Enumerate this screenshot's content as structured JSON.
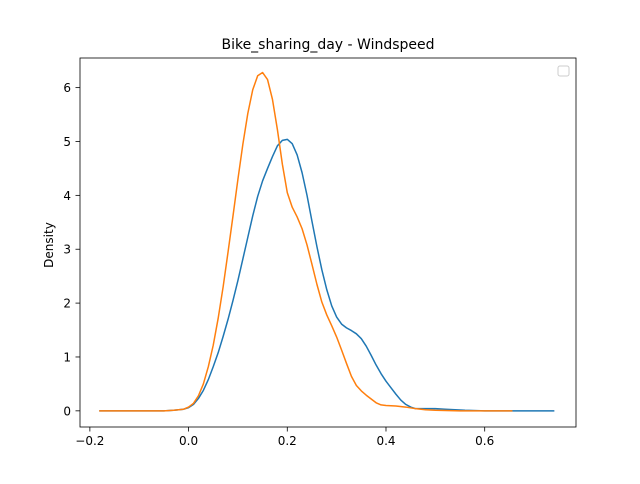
{
  "chart_data": {
    "type": "line",
    "title": "Bike_sharing_day - Windspeed",
    "xlabel": "",
    "ylabel": "Density",
    "xlim": [
      -0.22,
      0.785
    ],
    "ylim": [
      -0.3,
      6.55
    ],
    "xticks": [
      -0.2,
      0.0,
      0.2,
      0.4,
      0.6
    ],
    "xtick_labels": [
      "−0.2",
      "0.0",
      "0.2",
      "0.4",
      "0.6"
    ],
    "yticks": [
      0,
      1,
      2,
      3,
      4,
      5,
      6
    ],
    "ytick_labels": [
      "0",
      "1",
      "2",
      "3",
      "4",
      "5",
      "6"
    ],
    "grid": false,
    "legend": {
      "placement": "top-right",
      "entries": []
    },
    "series": [
      {
        "color": "#1f77b4",
        "points": [
          [
            -0.18,
            0.0
          ],
          [
            -0.1,
            0.0
          ],
          [
            -0.05,
            0.0
          ],
          [
            -0.03,
            0.01
          ],
          [
            -0.01,
            0.03
          ],
          [
            0.0,
            0.06
          ],
          [
            0.01,
            0.12
          ],
          [
            0.02,
            0.23
          ],
          [
            0.03,
            0.38
          ],
          [
            0.04,
            0.58
          ],
          [
            0.05,
            0.82
          ],
          [
            0.06,
            1.08
          ],
          [
            0.07,
            1.38
          ],
          [
            0.08,
            1.7
          ],
          [
            0.09,
            2.05
          ],
          [
            0.1,
            2.42
          ],
          [
            0.11,
            2.82
          ],
          [
            0.12,
            3.22
          ],
          [
            0.13,
            3.62
          ],
          [
            0.14,
            3.98
          ],
          [
            0.15,
            4.27
          ],
          [
            0.16,
            4.5
          ],
          [
            0.17,
            4.72
          ],
          [
            0.18,
            4.92
          ],
          [
            0.19,
            5.02
          ],
          [
            0.2,
            5.04
          ],
          [
            0.21,
            4.96
          ],
          [
            0.22,
            4.75
          ],
          [
            0.23,
            4.42
          ],
          [
            0.24,
            4.0
          ],
          [
            0.25,
            3.52
          ],
          [
            0.26,
            3.05
          ],
          [
            0.27,
            2.62
          ],
          [
            0.28,
            2.25
          ],
          [
            0.29,
            1.95
          ],
          [
            0.3,
            1.74
          ],
          [
            0.31,
            1.61
          ],
          [
            0.32,
            1.54
          ],
          [
            0.33,
            1.49
          ],
          [
            0.34,
            1.43
          ],
          [
            0.35,
            1.34
          ],
          [
            0.36,
            1.2
          ],
          [
            0.37,
            1.03
          ],
          [
            0.38,
            0.85
          ],
          [
            0.39,
            0.69
          ],
          [
            0.4,
            0.55
          ],
          [
            0.41,
            0.43
          ],
          [
            0.42,
            0.31
          ],
          [
            0.43,
            0.2
          ],
          [
            0.44,
            0.12
          ],
          [
            0.45,
            0.07
          ],
          [
            0.46,
            0.04
          ],
          [
            0.48,
            0.04
          ],
          [
            0.5,
            0.04
          ],
          [
            0.52,
            0.03
          ],
          [
            0.54,
            0.02
          ],
          [
            0.56,
            0.01
          ],
          [
            0.6,
            0.0
          ],
          [
            0.65,
            0.0
          ],
          [
            0.7,
            0.0
          ],
          [
            0.74,
            0.0
          ]
        ]
      },
      {
        "color": "#ff7f0e",
        "points": [
          [
            -0.18,
            0.0
          ],
          [
            -0.1,
            0.0
          ],
          [
            -0.05,
            0.0
          ],
          [
            -0.03,
            0.01
          ],
          [
            -0.01,
            0.03
          ],
          [
            0.0,
            0.07
          ],
          [
            0.01,
            0.14
          ],
          [
            0.02,
            0.28
          ],
          [
            0.03,
            0.5
          ],
          [
            0.04,
            0.82
          ],
          [
            0.05,
            1.22
          ],
          [
            0.06,
            1.72
          ],
          [
            0.07,
            2.3
          ],
          [
            0.08,
            2.95
          ],
          [
            0.09,
            3.62
          ],
          [
            0.1,
            4.3
          ],
          [
            0.11,
            4.95
          ],
          [
            0.12,
            5.52
          ],
          [
            0.13,
            5.96
          ],
          [
            0.14,
            6.22
          ],
          [
            0.15,
            6.28
          ],
          [
            0.16,
            6.15
          ],
          [
            0.17,
            5.78
          ],
          [
            0.18,
            5.22
          ],
          [
            0.19,
            4.58
          ],
          [
            0.2,
            4.05
          ],
          [
            0.21,
            3.78
          ],
          [
            0.22,
            3.6
          ],
          [
            0.23,
            3.38
          ],
          [
            0.24,
            3.08
          ],
          [
            0.25,
            2.72
          ],
          [
            0.26,
            2.35
          ],
          [
            0.27,
            2.02
          ],
          [
            0.28,
            1.78
          ],
          [
            0.29,
            1.58
          ],
          [
            0.3,
            1.37
          ],
          [
            0.31,
            1.13
          ],
          [
            0.32,
            0.88
          ],
          [
            0.33,
            0.64
          ],
          [
            0.34,
            0.47
          ],
          [
            0.35,
            0.37
          ],
          [
            0.36,
            0.29
          ],
          [
            0.37,
            0.22
          ],
          [
            0.38,
            0.15
          ],
          [
            0.39,
            0.11
          ],
          [
            0.4,
            0.1
          ],
          [
            0.42,
            0.09
          ],
          [
            0.44,
            0.07
          ],
          [
            0.46,
            0.04
          ],
          [
            0.48,
            0.02
          ],
          [
            0.5,
            0.01
          ],
          [
            0.55,
            0.0
          ],
          [
            0.6,
            0.0
          ],
          [
            0.655,
            0.0
          ]
        ]
      }
    ]
  }
}
